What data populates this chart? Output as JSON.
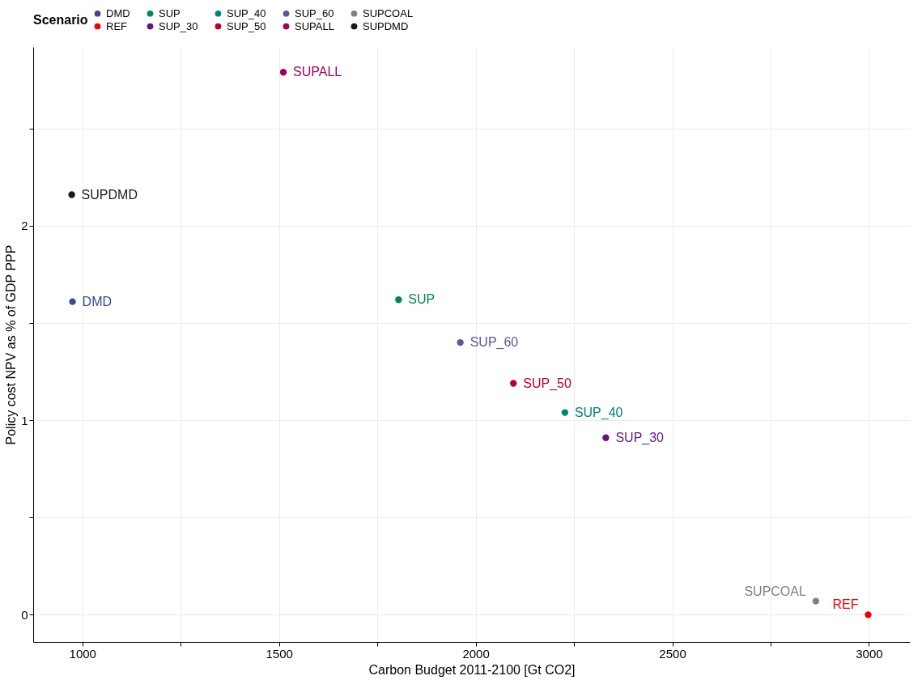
{
  "chart_data": {
    "type": "scatter",
    "xlabel": "Carbon Budget 2011-2100 [Gt CO2]",
    "ylabel": "Policy cost NPV as % of GDP PPP",
    "legend_title": "Scenario",
    "legend": "top",
    "grid": true,
    "marker": "circle",
    "xlim": [
      875,
      3104
    ],
    "ylim": [
      -0.14,
      2.92
    ],
    "xticks": [
      1000,
      {
        "value": 1250,
        "label": null
      },
      1500,
      {
        "value": 1750,
        "label": null
      },
      2000,
      {
        "value": 2250,
        "label": null
      },
      2500,
      {
        "value": 2750,
        "label": null
      },
      3000
    ],
    "yticks": [
      0,
      {
        "value": 0.5,
        "label": null
      },
      1,
      {
        "value": 1.5,
        "label": null
      },
      2,
      {
        "value": 2.5,
        "label": null
      }
    ],
    "series": [
      {
        "name": "DMD",
        "color": "#3b4992",
        "x": [
          975
        ],
        "values": [
          1.61
        ]
      },
      {
        "name": "SUP",
        "color": "#008b45",
        "x": [
          1804
        ],
        "values": [
          1.62
        ]
      },
      {
        "name": "SUP_40",
        "color": "#008280",
        "x": [
          2227
        ],
        "values": [
          1.04
        ]
      },
      {
        "name": "SUP_60",
        "color": "#5f559b",
        "x": [
          1961
        ],
        "values": [
          1.4
        ]
      },
      {
        "name": "SUPCOAL",
        "color": "#808180",
        "x": [
          2865
        ],
        "values": [
          0.07
        ]
      },
      {
        "name": "REF",
        "color": "#ee0000",
        "x": [
          2998
        ],
        "values": [
          0
        ]
      },
      {
        "name": "SUP_30",
        "color": "#631879",
        "x": [
          2331
        ],
        "values": [
          0.91
        ]
      },
      {
        "name": "SUP_50",
        "color": "#bb0021",
        "x": [
          2096
        ],
        "values": [
          1.19
        ]
      },
      {
        "name": "SUPALL",
        "color": "#a20056",
        "x": [
          1511
        ],
        "values": [
          2.79
        ]
      },
      {
        "name": "SUPDMD",
        "color": "#1b1919",
        "x": [
          973
        ],
        "values": [
          2.16
        ]
      }
    ]
  }
}
